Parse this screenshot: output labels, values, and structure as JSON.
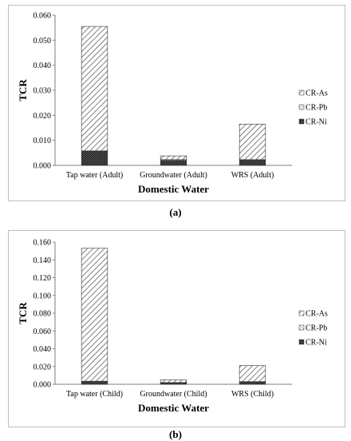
{
  "captions": [
    "(a)",
    "(b)"
  ],
  "chart_data": [
    {
      "type": "bar",
      "stacked": true,
      "categories": [
        "Tap water (Adult)",
        "Groundwater (Adult)",
        "WRS (Adult)"
      ],
      "series": [
        {
          "name": "CR-Ni",
          "values": [
            0.0058,
            0.002,
            0.0022
          ]
        },
        {
          "name": "CR-Pb",
          "values": [
            0.0,
            0.0003,
            0.0001
          ]
        },
        {
          "name": "CR-As",
          "values": [
            0.0497,
            0.0015,
            0.0142
          ]
        }
      ],
      "legend_order": [
        "CR-As",
        "CR-Pb",
        "CR-Ni"
      ],
      "ylabel": "TCR",
      "xlabel": "Domestic Water",
      "ylim": [
        0,
        0.06
      ],
      "yticks": [
        "0.000",
        "0.010",
        "0.020",
        "0.030",
        "0.040",
        "0.050",
        "0.060"
      ],
      "legend_position": "right",
      "grid": false
    },
    {
      "type": "bar",
      "stacked": true,
      "categories": [
        "Tap water (Child)",
        "Groundwater (Child)",
        "WRS (Child)"
      ],
      "series": [
        {
          "name": "CR-Ni",
          "values": [
            0.003,
            0.0015,
            0.0025
          ]
        },
        {
          "name": "CR-Pb",
          "values": [
            0.0005,
            0.0005,
            0.0005
          ]
        },
        {
          "name": "CR-As",
          "values": [
            0.1495,
            0.003,
            0.018
          ]
        }
      ],
      "legend_order": [
        "CR-As",
        "CR-Pb",
        "CR-Ni"
      ],
      "ylabel": "TCR",
      "xlabel": "Domestic Water",
      "ylim": [
        0,
        0.16
      ],
      "yticks": [
        "0.000",
        "0.020",
        "0.040",
        "0.060",
        "0.080",
        "0.100",
        "0.120",
        "0.140",
        "0.160"
      ],
      "legend_position": "right",
      "grid": false
    }
  ]
}
